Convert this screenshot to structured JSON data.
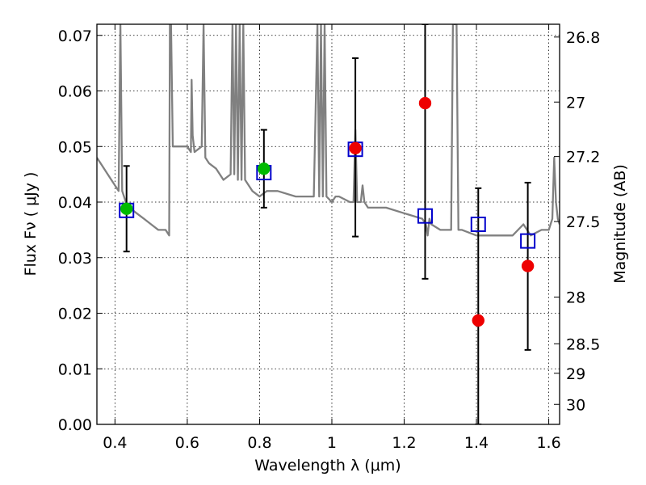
{
  "chart_data": {
    "type": "scatter",
    "xlabel": "Wavelength  λ (μm)",
    "ylabel": "Flux  Fν  ( μJy )",
    "ylabel_right": "Magnitude (AB)",
    "xlim": [
      0.35,
      1.63
    ],
    "ylim": [
      0.0,
      0.072
    ],
    "grid": true,
    "x_ticks": [
      0.4,
      0.6,
      0.8,
      1.0,
      1.2,
      1.4,
      1.6
    ],
    "x_tick_labels": [
      "0.4",
      "0.6",
      "0.8",
      "1",
      "1.2",
      "1.4",
      "1.6"
    ],
    "y_ticks": [
      0.0,
      0.01,
      0.02,
      0.03,
      0.04,
      0.05,
      0.06,
      0.07
    ],
    "y_tick_labels": [
      "0.00",
      "0.01",
      "0.02",
      "0.03",
      "0.04",
      "0.05",
      "0.06",
      "0.07"
    ],
    "right_ticks": [
      {
        "label": "26.8",
        "flux": 0.0697
      },
      {
        "label": "27",
        "flux": 0.058
      },
      {
        "label": "27.2",
        "flux": 0.0482
      },
      {
        "label": "27.5",
        "flux": 0.0365
      },
      {
        "label": "28",
        "flux": 0.0229
      },
      {
        "label": "28.5",
        "flux": 0.0145
      },
      {
        "label": "29",
        "flux": 0.0092
      },
      {
        "label": "30",
        "flux": 0.0036
      }
    ],
    "series": [
      {
        "kind": "line",
        "color": "#808080",
        "x": [
          0.35,
          0.36,
          0.38,
          0.4,
          0.41,
          0.415,
          0.42,
          0.425,
          0.43,
          0.44,
          0.46,
          0.48,
          0.5,
          0.52,
          0.54,
          0.55,
          0.552,
          0.555,
          0.56,
          0.58,
          0.6,
          0.61,
          0.612,
          0.615,
          0.62,
          0.64,
          0.645,
          0.65,
          0.66,
          0.68,
          0.7,
          0.72,
          0.725,
          0.73,
          0.735,
          0.74,
          0.745,
          0.75,
          0.755,
          0.76,
          0.78,
          0.8,
          0.82,
          0.85,
          0.9,
          0.95,
          0.96,
          0.965,
          0.97,
          0.975,
          0.98,
          0.985,
          1.0,
          1.01,
          1.02,
          1.05,
          1.06,
          1.065,
          1.07,
          1.08,
          1.085,
          1.09,
          1.1,
          1.15,
          1.2,
          1.25,
          1.26,
          1.265,
          1.27,
          1.275,
          1.3,
          1.33,
          1.335,
          1.34,
          1.345,
          1.35,
          1.36,
          1.4,
          1.45,
          1.5,
          1.53,
          1.55,
          1.58,
          1.6,
          1.61,
          1.615,
          1.62,
          1.625,
          1.63
        ],
        "y": [
          0.048,
          0.047,
          0.045,
          0.043,
          0.042,
          0.072,
          0.042,
          0.041,
          0.04,
          0.039,
          0.038,
          0.037,
          0.036,
          0.035,
          0.035,
          0.034,
          0.072,
          0.072,
          0.05,
          0.05,
          0.05,
          0.049,
          0.062,
          0.052,
          0.049,
          0.05,
          0.072,
          0.048,
          0.047,
          0.046,
          0.044,
          0.045,
          0.072,
          0.045,
          0.072,
          0.044,
          0.072,
          0.044,
          0.072,
          0.044,
          0.042,
          0.041,
          0.042,
          0.042,
          0.041,
          0.041,
          0.072,
          0.041,
          0.072,
          0.041,
          0.072,
          0.041,
          0.04,
          0.041,
          0.041,
          0.04,
          0.04,
          0.053,
          0.04,
          0.04,
          0.043,
          0.04,
          0.039,
          0.039,
          0.038,
          0.037,
          0.036,
          0.034,
          0.037,
          0.036,
          0.035,
          0.035,
          0.072,
          0.072,
          0.072,
          0.035,
          0.035,
          0.034,
          0.034,
          0.034,
          0.036,
          0.034,
          0.035,
          0.035,
          0.037,
          0.048,
          0.04,
          0.037,
          0.036
        ]
      },
      {
        "kind": "open-square",
        "color": "#0000cc",
        "x": [
          0.432,
          0.812,
          1.065,
          1.258,
          1.405,
          1.542
        ],
        "y": [
          0.0385,
          0.0453,
          0.0495,
          0.0375,
          0.036,
          0.033
        ]
      },
      {
        "kind": "filled-circle",
        "color": "#00bb00",
        "x": [
          0.432,
          0.812
        ],
        "y": [
          0.0388,
          0.046
        ]
      },
      {
        "kind": "filled-circle",
        "color": "#ee0000",
        "x": [
          1.065,
          1.258,
          1.405,
          1.542
        ],
        "y": [
          0.0497,
          0.0578,
          0.0187,
          0.0285
        ]
      },
      {
        "kind": "errorbar",
        "color": "#000000",
        "x": [
          0.432,
          0.812,
          1.065,
          1.258,
          1.405,
          1.542
        ],
        "y": [
          0.0388,
          0.046,
          0.0497,
          0.0578,
          0.0187,
          0.0285
        ],
        "yerr_low": [
          0.0077,
          0.007,
          0.0159,
          0.0316,
          0.0187,
          0.0151
        ],
        "yerr_high": [
          0.0077,
          0.007,
          0.0162,
          0.0142,
          0.0238,
          0.015
        ]
      }
    ]
  }
}
